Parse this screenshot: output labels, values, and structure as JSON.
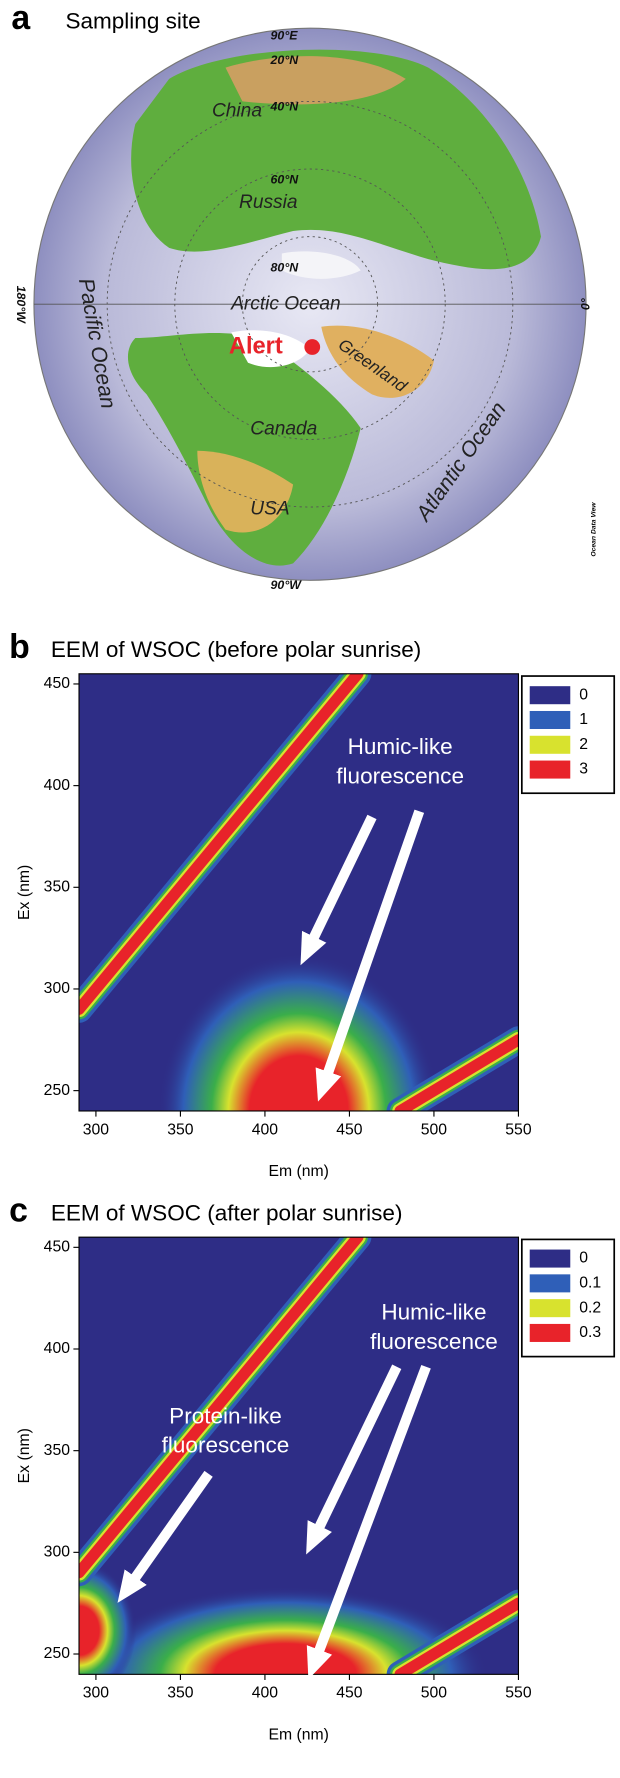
{
  "map": {
    "panel": "a",
    "title": "Sampling site",
    "labels": [
      "90°E",
      "20°N",
      "40°N",
      "China",
      "60°N",
      "Russia",
      "80°N",
      "Arctic Ocean",
      "180°W",
      "0°",
      "Pacific Ocean",
      "Alert",
      "Greenland",
      "Canada",
      "USA",
      "Atlantic Ocean",
      "90°W",
      "Ocean Data View"
    ]
  },
  "chart_data": [
    {
      "type": "contour",
      "panel": "b",
      "title": "EEM of WSOC (before polar sunrise)",
      "xlabel": "Em (nm)",
      "ylabel": "Ex (nm)",
      "xlim": [
        290,
        550
      ],
      "ylim": [
        240,
        455
      ],
      "xticks": [
        300,
        350,
        400,
        450,
        500,
        550
      ],
      "yticks": [
        250,
        300,
        350,
        400,
        450
      ],
      "levels": [
        {
          "name": "0",
          "color": "#2e2d86"
        },
        {
          "name": "1",
          "color": "#2f5fb8"
        },
        {
          "name": "2",
          "color": "#d8e22e"
        },
        {
          "name": "3",
          "color": "#e8232a"
        }
      ],
      "annotations": [
        [
          "Humic-like",
          "fluorescence"
        ]
      ]
    },
    {
      "type": "contour",
      "panel": "c",
      "title": "EEM of WSOC (after polar sunrise)",
      "xlabel": "Em (nm)",
      "ylabel": "Ex (nm)",
      "xlim": [
        290,
        550
      ],
      "ylim": [
        240,
        455
      ],
      "xticks": [
        300,
        350,
        400,
        450,
        500,
        550
      ],
      "yticks": [
        250,
        300,
        350,
        400,
        450
      ],
      "levels": [
        {
          "name": "0",
          "color": "#2e2d86"
        },
        {
          "name": "0.1",
          "color": "#2f5fb8"
        },
        {
          "name": "0.2",
          "color": "#d8e22e"
        },
        {
          "name": "0.3",
          "color": "#e8232a"
        }
      ],
      "annotations": [
        [
          "Humic-like",
          "fluorescence"
        ],
        [
          "Protein-like",
          "fluorescence"
        ]
      ]
    }
  ]
}
